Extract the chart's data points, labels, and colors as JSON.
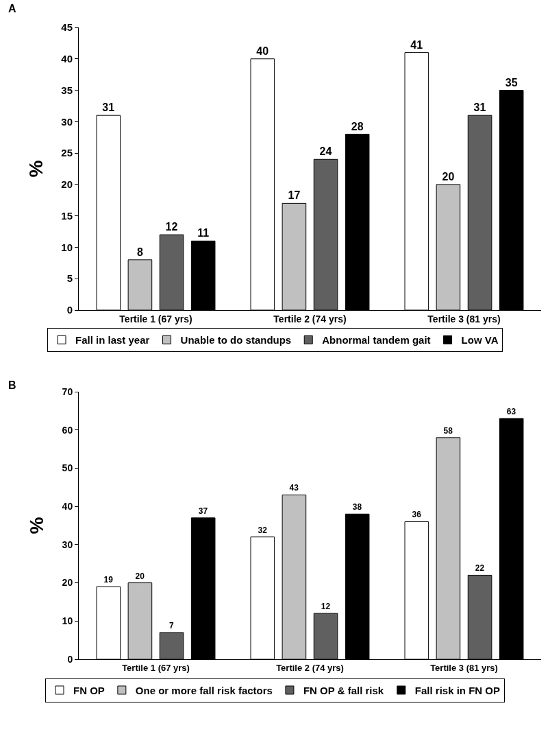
{
  "chart_data": [
    {
      "type": "bar",
      "title": "A",
      "categories": [
        "Tertile 1 (67 yrs)",
        "Tertile 2 (74 yrs)",
        "Tertile 3 (81 yrs)"
      ],
      "ylabel": "%",
      "ylim": [
        0,
        45
      ],
      "yticks": [
        0,
        5,
        10,
        15,
        20,
        25,
        30,
        35,
        40,
        45
      ],
      "legend": "bottom",
      "data_labels": true,
      "series": [
        {
          "name": "Fall in last year",
          "color": "#ffffff",
          "values": [
            31,
            40,
            41
          ]
        },
        {
          "name": "Unable to do standups",
          "color": "#c0c0c0",
          "values": [
            8,
            17,
            20
          ]
        },
        {
          "name": "Abnormal tandem gait",
          "color": "#606060",
          "values": [
            12,
            24,
            31
          ]
        },
        {
          "name": "Low VA",
          "color": "#000000",
          "values": [
            11,
            28,
            35
          ]
        }
      ]
    },
    {
      "type": "bar",
      "title": "B",
      "categories": [
        "Tertile 1 (67 yrs)",
        "Tertile 2 (74 yrs)",
        "Tertile 3 (81 yrs)"
      ],
      "ylabel": "%",
      "ylim": [
        0,
        70
      ],
      "yticks": [
        0,
        10,
        20,
        30,
        40,
        50,
        60,
        70
      ],
      "legend": "bottom",
      "data_labels": true,
      "series": [
        {
          "name": "FN OP",
          "color": "#ffffff",
          "values": [
            19,
            32,
            36
          ]
        },
        {
          "name": "One or more fall risk factors",
          "color": "#c0c0c0",
          "values": [
            20,
            43,
            58
          ]
        },
        {
          "name": "FN OP & fall risk",
          "color": "#606060",
          "values": [
            7,
            12,
            22
          ]
        },
        {
          "name": "Fall risk in FN OP",
          "color": "#000000",
          "values": [
            37,
            38,
            63
          ]
        }
      ]
    }
  ]
}
